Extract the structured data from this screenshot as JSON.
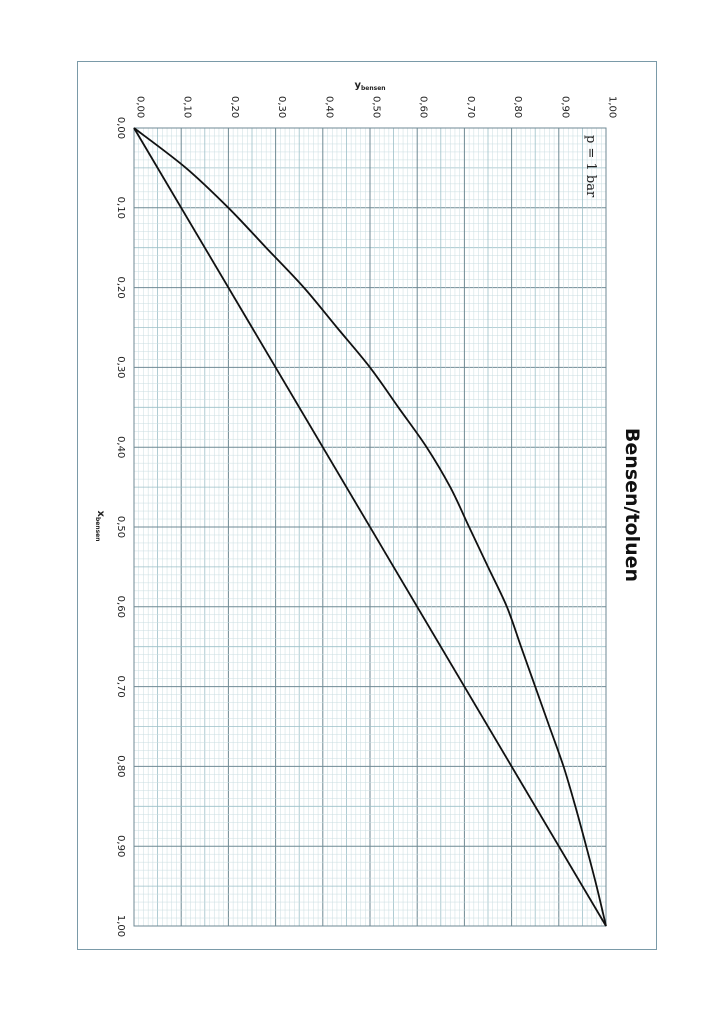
{
  "chart_data": {
    "type": "line",
    "title": "Bensen/toluen",
    "annotation": "p = 1 bar",
    "xlabel": "x",
    "xlabel_sub": "bensen",
    "ylabel": "y",
    "ylabel_sub": "bensen",
    "xlim": [
      0,
      1
    ],
    "ylim": [
      0,
      1
    ],
    "grid": true,
    "orientation": "rotated-90-clockwise",
    "x_ticks": [
      "0,00",
      "0,10",
      "0,20",
      "0,30",
      "0,40",
      "0,50",
      "0,60",
      "0,70",
      "0,80",
      "0,90",
      "1,00"
    ],
    "y_ticks": [
      "0,00",
      "0,10",
      "0,20",
      "0,30",
      "0,40",
      "0,50",
      "0,60",
      "0,70",
      "0,80",
      "0,90",
      "1,00"
    ],
    "series": [
      {
        "x": [
          0,
          1
        ],
        "y": [
          0,
          1
        ],
        "color": "#111111"
      },
      {
        "x": [
          0,
          0.05,
          0.1,
          0.15,
          0.2,
          0.25,
          0.3,
          0.35,
          0.4,
          0.45,
          0.5,
          0.55,
          0.6,
          0.65,
          0.7,
          0.75,
          0.8,
          0.85,
          0.9,
          0.95,
          1.0
        ],
        "y": [
          0,
          0.11,
          0.2,
          0.28,
          0.36,
          0.43,
          0.5,
          0.56,
          0.62,
          0.67,
          0.71,
          0.75,
          0.79,
          0.82,
          0.85,
          0.88,
          0.91,
          0.935,
          0.958,
          0.98,
          1.0
        ],
        "color": "#111111"
      }
    ]
  }
}
